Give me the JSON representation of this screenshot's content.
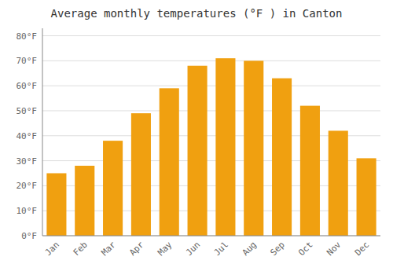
{
  "chart_data": {
    "type": "bar",
    "title": "Average monthly temperatures (°F ) in Canton",
    "categories": [
      "Jan",
      "Feb",
      "Mar",
      "Apr",
      "May",
      "Jun",
      "Jul",
      "Aug",
      "Sep",
      "Oct",
      "Nov",
      "Dec"
    ],
    "values": [
      25,
      28,
      38,
      49,
      59,
      68,
      71,
      70,
      63,
      52,
      42,
      31
    ],
    "color": "#F0A010",
    "ylim": [
      0,
      83
    ],
    "yticks": [
      {
        "value": 0,
        "label": "0°F"
      },
      {
        "value": 10,
        "label": "10°F"
      },
      {
        "value": 20,
        "label": "20°F"
      },
      {
        "value": 30,
        "label": "30°F"
      },
      {
        "value": 40,
        "label": "40°F"
      },
      {
        "value": 50,
        "label": "50°F"
      },
      {
        "value": 60,
        "label": "60°F"
      },
      {
        "value": 70,
        "label": "70°F"
      },
      {
        "value": 80,
        "label": "80°F"
      }
    ],
    "grid": true
  }
}
